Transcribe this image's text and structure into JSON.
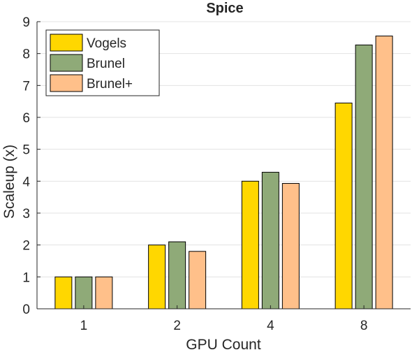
{
  "chart_data": {
    "type": "bar",
    "title": "Spice",
    "xlabel": "GPU Count",
    "ylabel": "Scaleup (x)",
    "categories": [
      "1",
      "2",
      "4",
      "8"
    ],
    "ylim": [
      0,
      9
    ],
    "yticks": [
      "0",
      "1",
      "2",
      "3",
      "4",
      "5",
      "6",
      "7",
      "8",
      "9"
    ],
    "grid": "horizontal",
    "legend_position": "top-left",
    "series": [
      {
        "name": "Vogels",
        "color": "#FFD700",
        "values": [
          1.0,
          2.0,
          4.0,
          6.45
        ]
      },
      {
        "name": "Brunel",
        "color": "#8FAA78",
        "values": [
          1.0,
          2.1,
          4.28,
          8.27
        ]
      },
      {
        "name": "Brunel+",
        "color": "#FFC08A",
        "values": [
          1.0,
          1.8,
          3.93,
          8.55
        ]
      }
    ]
  }
}
